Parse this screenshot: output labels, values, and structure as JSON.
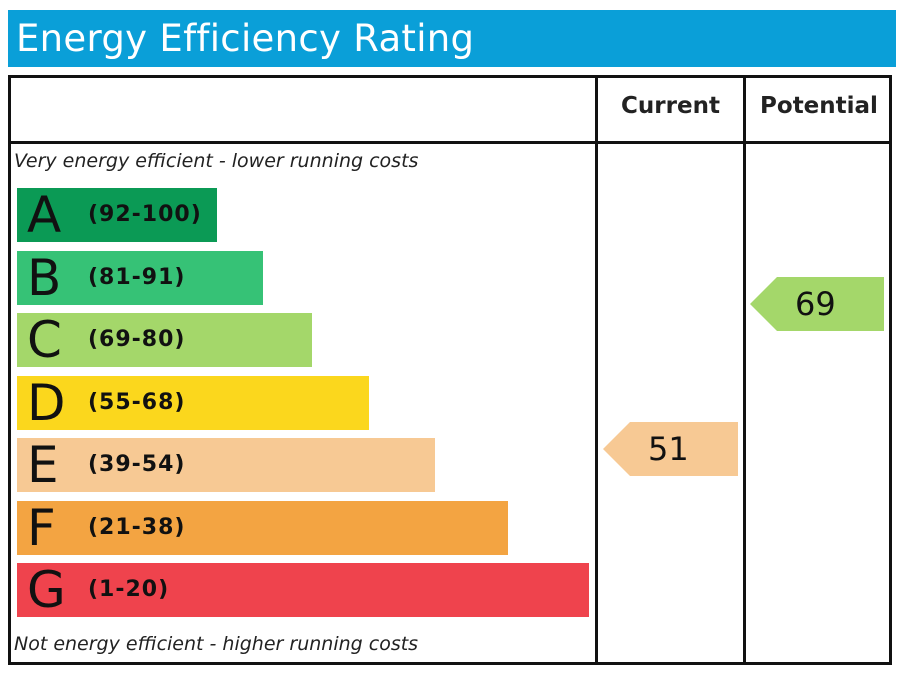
{
  "title": "Energy Efficiency Rating",
  "columns": {
    "current": "Current",
    "potential": "Potential"
  },
  "captions": {
    "top": "Very energy efficient - lower running costs",
    "bottom": "Not energy efficient - higher running costs"
  },
  "chart_data": {
    "type": "bar",
    "bands": [
      {
        "letter": "A",
        "range": "(92-100)",
        "color": "#0b9a55"
      },
      {
        "letter": "B",
        "range": "(81-91)",
        "color": "#36c276"
      },
      {
        "letter": "C",
        "range": "(69-80)",
        "color": "#a4d76a"
      },
      {
        "letter": "D",
        "range": "(55-68)",
        "color": "#fbd71d"
      },
      {
        "letter": "E",
        "range": "(39-54)",
        "color": "#f7c994"
      },
      {
        "letter": "F",
        "range": "(21-38)",
        "color": "#f3a442"
      },
      {
        "letter": "G",
        "range": "(1-20)",
        "color": "#ef434d"
      }
    ],
    "current": {
      "value": 51,
      "band": "E",
      "color": "#f7c994"
    },
    "potential": {
      "value": 69,
      "band": "C",
      "color": "#a4d76a"
    }
  }
}
